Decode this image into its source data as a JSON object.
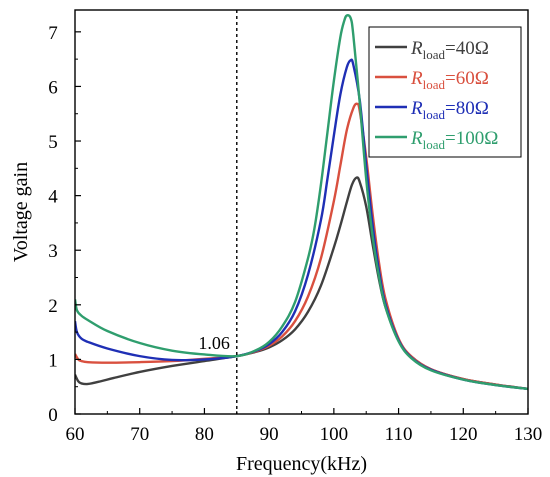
{
  "chart_data": {
    "type": "line",
    "title": "",
    "xlabel": "Frequency(kHz)",
    "ylabel": "Voltage gain",
    "xlim": [
      60,
      130
    ],
    "ylim": [
      0,
      7.4
    ],
    "x_ticks": [
      60,
      70,
      80,
      90,
      100,
      110,
      120,
      130
    ],
    "y_ticks": [
      0,
      1,
      2,
      3,
      4,
      5,
      6,
      7
    ],
    "grid": false,
    "legend_position": "top-right",
    "series": [
      {
        "name": "R_load=40Ω",
        "label_main": "R",
        "label_sub": "load",
        "label_rest": "=40Ω",
        "color": "#404040",
        "points": [
          [
            60,
            0.72
          ],
          [
            60.5,
            0.6
          ],
          [
            61,
            0.56
          ],
          [
            62,
            0.55
          ],
          [
            64,
            0.6
          ],
          [
            66,
            0.66
          ],
          [
            70,
            0.77
          ],
          [
            75,
            0.88
          ],
          [
            80,
            0.97
          ],
          [
            85,
            1.06
          ],
          [
            88,
            1.14
          ],
          [
            90,
            1.22
          ],
          [
            92,
            1.35
          ],
          [
            94,
            1.55
          ],
          [
            96,
            1.87
          ],
          [
            98,
            2.35
          ],
          [
            100,
            3.05
          ],
          [
            101,
            3.45
          ],
          [
            102,
            3.88
          ],
          [
            102.8,
            4.2
          ],
          [
            103.5,
            4.33
          ],
          [
            104,
            4.25
          ],
          [
            105,
            3.8
          ],
          [
            106,
            3.1
          ],
          [
            107,
            2.45
          ],
          [
            108,
            1.95
          ],
          [
            110,
            1.35
          ],
          [
            112,
            1.05
          ],
          [
            115,
            0.82
          ],
          [
            120,
            0.64
          ],
          [
            125,
            0.54
          ],
          [
            130,
            0.46
          ]
        ]
      },
      {
        "name": "R_load=60Ω",
        "label_main": "R",
        "label_sub": "load",
        "label_rest": "=60Ω",
        "color": "#d9503f",
        "points": [
          [
            60,
            1.1
          ],
          [
            60.5,
            1.0
          ],
          [
            61,
            0.97
          ],
          [
            62,
            0.95
          ],
          [
            65,
            0.94
          ],
          [
            70,
            0.95
          ],
          [
            75,
            0.97
          ],
          [
            80,
            1.01
          ],
          [
            85,
            1.06
          ],
          [
            88,
            1.15
          ],
          [
            90,
            1.25
          ],
          [
            92,
            1.42
          ],
          [
            94,
            1.7
          ],
          [
            96,
            2.15
          ],
          [
            98,
            2.85
          ],
          [
            100,
            3.9
          ],
          [
            101,
            4.55
          ],
          [
            102,
            5.2
          ],
          [
            103,
            5.6
          ],
          [
            103.6,
            5.68
          ],
          [
            104,
            5.55
          ],
          [
            105,
            4.7
          ],
          [
            106,
            3.65
          ],
          [
            107,
            2.75
          ],
          [
            108,
            2.1
          ],
          [
            110,
            1.38
          ],
          [
            112,
            1.05
          ],
          [
            115,
            0.82
          ],
          [
            120,
            0.64
          ],
          [
            125,
            0.54
          ],
          [
            130,
            0.46
          ]
        ]
      },
      {
        "name": "R_load=80Ω",
        "label_main": "R",
        "label_sub": "load",
        "label_rest": "=80Ω",
        "color": "#1f2fb5",
        "points": [
          [
            60,
            1.7
          ],
          [
            60.3,
            1.5
          ],
          [
            61,
            1.38
          ],
          [
            62,
            1.32
          ],
          [
            65,
            1.2
          ],
          [
            70,
            1.06
          ],
          [
            75,
            0.99
          ],
          [
            80,
            1.0
          ],
          [
            85,
            1.06
          ],
          [
            88,
            1.16
          ],
          [
            90,
            1.28
          ],
          [
            92,
            1.5
          ],
          [
            94,
            1.88
          ],
          [
            96,
            2.55
          ],
          [
            98,
            3.55
          ],
          [
            99,
            4.3
          ],
          [
            100,
            5.1
          ],
          [
            101,
            5.85
          ],
          [
            102,
            6.35
          ],
          [
            102.6,
            6.48
          ],
          [
            103,
            6.4
          ],
          [
            104,
            5.75
          ],
          [
            105,
            4.55
          ],
          [
            106,
            3.45
          ],
          [
            107,
            2.6
          ],
          [
            108,
            2.0
          ],
          [
            110,
            1.35
          ],
          [
            112,
            1.03
          ],
          [
            115,
            0.81
          ],
          [
            120,
            0.63
          ],
          [
            125,
            0.53
          ],
          [
            130,
            0.46
          ]
        ]
      },
      {
        "name": "R_load=100Ω",
        "label_main": "R",
        "label_sub": "load",
        "label_rest": "=100Ω",
        "color": "#2f9e6e",
        "points": [
          [
            60,
            2.1
          ],
          [
            60.3,
            1.9
          ],
          [
            61,
            1.8
          ],
          [
            62,
            1.72
          ],
          [
            65,
            1.52
          ],
          [
            70,
            1.3
          ],
          [
            75,
            1.16
          ],
          [
            80,
            1.09
          ],
          [
            85,
            1.06
          ],
          [
            88,
            1.17
          ],
          [
            90,
            1.32
          ],
          [
            92,
            1.6
          ],
          [
            94,
            2.05
          ],
          [
            96,
            2.85
          ],
          [
            97,
            3.4
          ],
          [
            98,
            4.2
          ],
          [
            99,
            5.15
          ],
          [
            100,
            6.1
          ],
          [
            101,
            6.9
          ],
          [
            101.6,
            7.2
          ],
          [
            102,
            7.3
          ],
          [
            102.6,
            7.25
          ],
          [
            103,
            6.95
          ],
          [
            104,
            5.7
          ],
          [
            105,
            4.3
          ],
          [
            106,
            3.25
          ],
          [
            107,
            2.5
          ],
          [
            108,
            1.95
          ],
          [
            110,
            1.33
          ],
          [
            112,
            1.02
          ],
          [
            115,
            0.8
          ],
          [
            120,
            0.63
          ],
          [
            125,
            0.53
          ],
          [
            130,
            0.46
          ]
        ]
      }
    ],
    "annotations": {
      "vline_x": 85,
      "point_label": "1.06",
      "point_label_x": 81.5,
      "point_label_y": 1.06
    }
  }
}
